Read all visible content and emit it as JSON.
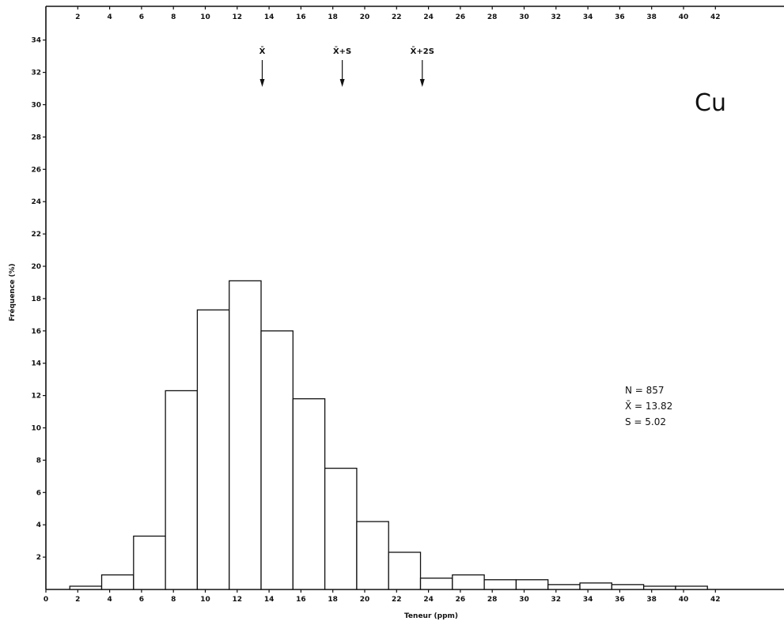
{
  "chart_data": {
    "type": "bar",
    "element_label": "Cu",
    "xlabel": "Teneur   (ppm)",
    "ylabel": "Fréquence (%)",
    "xlim": [
      0,
      46
    ],
    "ylim": [
      0,
      36
    ],
    "x_ticks_bottom": [
      "0",
      "2",
      "4",
      "6",
      "8",
      "10",
      "12",
      "14",
      "16",
      "18",
      "20",
      "22",
      "24",
      "26",
      "28",
      "30",
      "32",
      "34",
      "36",
      "38",
      "40",
      "42"
    ],
    "x_ticks_top": [
      "2",
      "4",
      "6",
      "8",
      "10",
      "12",
      "14",
      "16",
      "18",
      "20",
      "22",
      "24",
      "26",
      "28",
      "30",
      "32",
      "34",
      "36",
      "38",
      "40",
      "42"
    ],
    "y_ticks": [
      "2",
      "4",
      "6",
      "8",
      "10",
      "12",
      "14",
      "16",
      "18",
      "20",
      "22",
      "24",
      "26",
      "28",
      "30",
      "32",
      "34"
    ],
    "bins": [
      {
        "x0": 1.5,
        "x1": 3.5,
        "value": 0.2
      },
      {
        "x0": 3.5,
        "x1": 5.5,
        "value": 0.9
      },
      {
        "x0": 5.5,
        "x1": 7.5,
        "value": 3.3
      },
      {
        "x0": 7.5,
        "x1": 9.5,
        "value": 12.3
      },
      {
        "x0": 9.5,
        "x1": 11.5,
        "value": 17.3
      },
      {
        "x0": 11.5,
        "x1": 13.5,
        "value": 19.1
      },
      {
        "x0": 13.5,
        "x1": 15.5,
        "value": 16.0
      },
      {
        "x0": 15.5,
        "x1": 17.5,
        "value": 11.8
      },
      {
        "x0": 17.5,
        "x1": 19.5,
        "value": 7.5
      },
      {
        "x0": 19.5,
        "x1": 21.5,
        "value": 4.2
      },
      {
        "x0": 21.5,
        "x1": 23.5,
        "value": 2.3
      },
      {
        "x0": 23.5,
        "x1": 25.5,
        "value": 0.7
      },
      {
        "x0": 25.5,
        "x1": 27.5,
        "value": 0.9
      },
      {
        "x0": 27.5,
        "x1": 29.5,
        "value": 0.6
      },
      {
        "x0": 29.5,
        "x1": 31.5,
        "value": 0.6
      },
      {
        "x0": 31.5,
        "x1": 33.5,
        "value": 0.3
      },
      {
        "x0": 33.5,
        "x1": 35.5,
        "value": 0.4
      },
      {
        "x0": 35.5,
        "x1": 37.5,
        "value": 0.3
      },
      {
        "x0": 37.5,
        "x1": 39.5,
        "value": 0.2
      },
      {
        "x0": 39.5,
        "x1": 41.5,
        "value": 0.2
      }
    ],
    "markers": [
      {
        "label": "X̄",
        "x": 13.82
      },
      {
        "label": "X̄+S",
        "x": 18.84
      },
      {
        "label": "X̄+2S",
        "x": 23.86
      }
    ],
    "stats": {
      "n": "N = 857",
      "mean": "X̄ = 13.82",
      "sd": "S = 5.02"
    }
  }
}
